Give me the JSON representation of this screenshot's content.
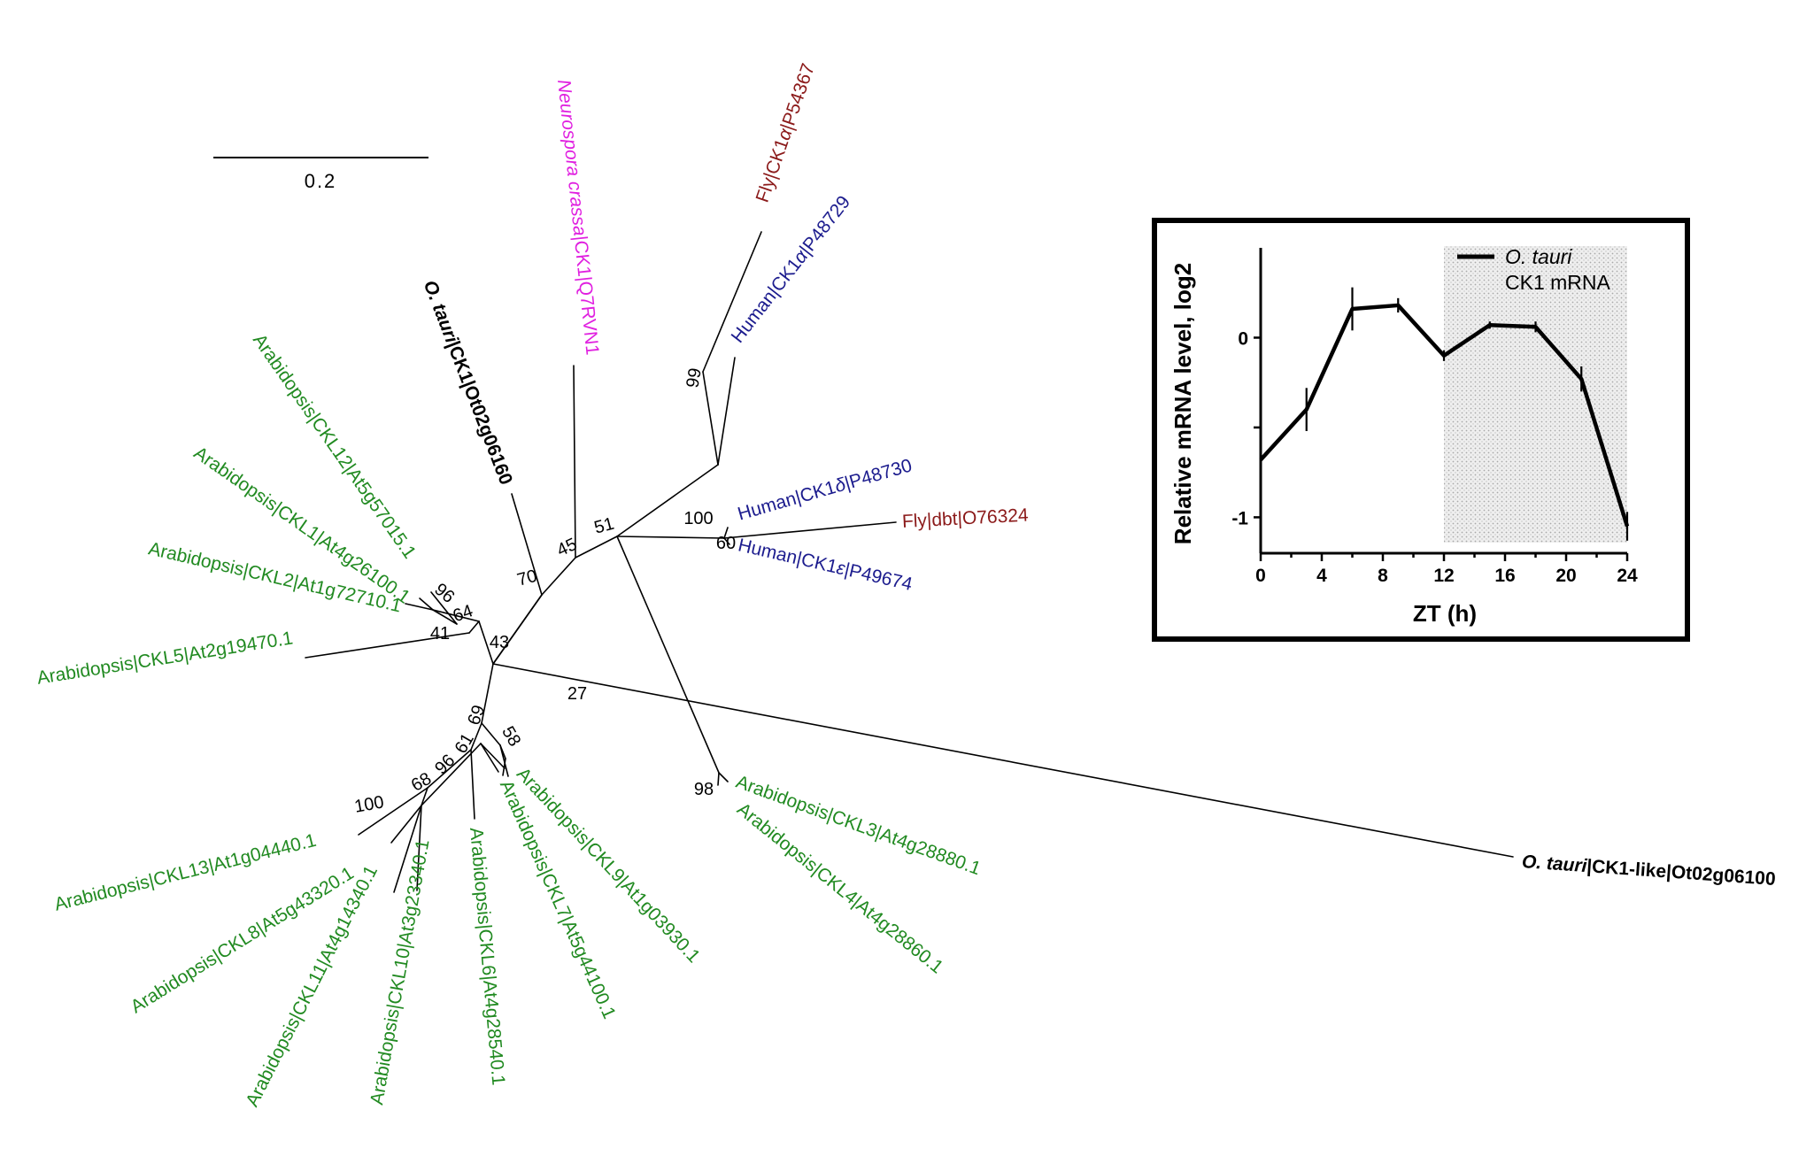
{
  "scale_bar": {
    "label": "0.2"
  },
  "colors": {
    "arabidopsis": "#218a21",
    "human": "#1c1c8e",
    "fly": "#8b1a1a",
    "neurospora": "#e020e0",
    "otauri": "#000000",
    "branch": "#000000"
  },
  "leaves": [
    {
      "id": "neurospora",
      "parts": [
        {
          "t": "Neurospora crassa",
          "i": true
        },
        {
          "t": "|CK1|Q7RVN1"
        }
      ]
    },
    {
      "id": "fly_ck1a",
      "parts": [
        {
          "t": "Fly|CK1"
        },
        {
          "t": "α",
          "i": true
        },
        {
          "t": "|P54367"
        }
      ]
    },
    {
      "id": "human_ck1a",
      "parts": [
        {
          "t": "Human|CK1"
        },
        {
          "t": "α",
          "i": true
        },
        {
          "t": "|P48729"
        }
      ]
    },
    {
      "id": "ot_ck1",
      "parts": [
        {
          "t": "O. tauri",
          "i": true
        },
        {
          "t": "|CK1|Ot02g06160"
        }
      ]
    },
    {
      "id": "ckl12",
      "parts": [
        {
          "t": "Arabidopsis|CKL12|At5g57015.1"
        }
      ]
    },
    {
      "id": "ckl1",
      "parts": [
        {
          "t": "Arabidopsis|CKL1|At4g26100.1"
        }
      ]
    },
    {
      "id": "ckl2",
      "parts": [
        {
          "t": "Arabidopsis|CKL2|At1g72710.1"
        }
      ]
    },
    {
      "id": "ckl5",
      "parts": [
        {
          "t": "Arabidopsis|CKL5|At2g19470.1"
        }
      ]
    },
    {
      "id": "human_ck1d",
      "parts": [
        {
          "t": "Human|CK1"
        },
        {
          "t": "δ",
          "i": true
        },
        {
          "t": "|P48730"
        }
      ]
    },
    {
      "id": "fly_dbt",
      "parts": [
        {
          "t": "Fly|dbt|O76324"
        }
      ]
    },
    {
      "id": "human_ck1e",
      "parts": [
        {
          "t": "Human|CK1"
        },
        {
          "t": "ε",
          "i": true
        },
        {
          "t": "|P49674"
        }
      ]
    },
    {
      "id": "ot_ck1like",
      "parts": [
        {
          "t": "O. tauri",
          "i": true
        },
        {
          "t": "|CK1-like|Ot02g06100"
        }
      ]
    },
    {
      "id": "ckl3",
      "parts": [
        {
          "t": "Arabidopsis|CKL3|At4g28880.1"
        }
      ]
    },
    {
      "id": "ckl4",
      "parts": [
        {
          "t": "Arabidopsis|CKL4|At4g28860.1"
        }
      ]
    },
    {
      "id": "ckl13",
      "parts": [
        {
          "t": "Arabidopsis|CKL13|At1g04440.1"
        }
      ]
    },
    {
      "id": "ckl8",
      "parts": [
        {
          "t": "Arabidopsis|CKL8|At5g43320.1"
        }
      ]
    },
    {
      "id": "ckl11",
      "parts": [
        {
          "t": "Arabidopsis|CKL11|At4g14340.1"
        }
      ]
    },
    {
      "id": "ckl10",
      "parts": [
        {
          "t": "Arabidopsis|CKL10|At3g23340.1"
        }
      ]
    },
    {
      "id": "ckl6",
      "parts": [
        {
          "t": "Arabidopsis|CKL6|At4g28540.1"
        }
      ]
    },
    {
      "id": "ckl7",
      "parts": [
        {
          "t": "Arabidopsis|CKL7|At5g44100.1"
        }
      ]
    },
    {
      "id": "ckl9",
      "parts": [
        {
          "t": "Arabidopsis|CKL9|At1g03930.1"
        }
      ]
    }
  ],
  "bootstrap": [
    "99",
    "45",
    "51",
    "70",
    "100",
    "60",
    "96",
    "64",
    "41",
    "43",
    "27",
    "98",
    "69",
    "58",
    "61",
    "96",
    "68",
    "100"
  ],
  "chart_data": {
    "type": "line",
    "xlabel": "ZT (h)",
    "ylabel": "Relative mRNA level, log2",
    "xlim": [
      0,
      24
    ],
    "ylim": [
      -1.2,
      0.5
    ],
    "xticks": [
      "0",
      "4",
      "8",
      "12",
      "16",
      "20",
      "24"
    ],
    "yticks": [
      "0",
      "-1"
    ],
    "shaded_x_range": [
      12,
      24
    ],
    "legend_position": "top-right",
    "series": [
      {
        "name_parts": [
          {
            "t": "O. tauri",
            "i": true
          },
          {
            "t": "CK1 mRNA"
          }
        ],
        "x": [
          0,
          3,
          6,
          9,
          12,
          15,
          18,
          21,
          24
        ],
        "y": [
          -0.68,
          -0.4,
          0.16,
          0.18,
          -0.1,
          0.07,
          0.06,
          -0.23,
          -1.05
        ],
        "err": [
          0.06,
          0.12,
          0.12,
          0.04,
          0.03,
          0.02,
          0.03,
          0.07,
          0.08
        ]
      }
    ]
  }
}
